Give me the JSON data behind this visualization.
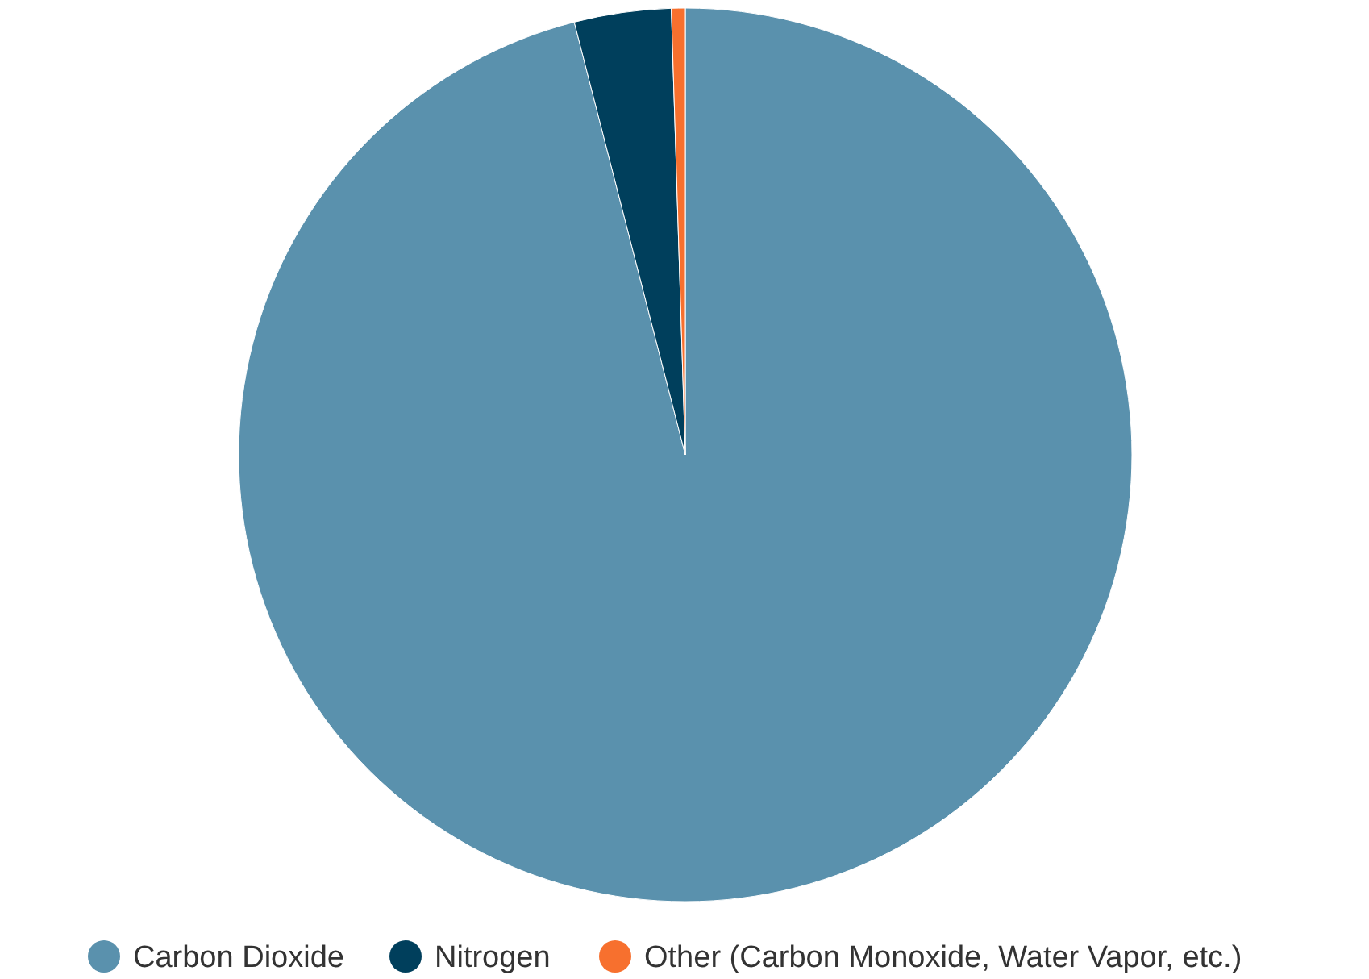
{
  "chart_data": {
    "type": "pie",
    "categories": [
      "Carbon Dioxide",
      "Nitrogen",
      "Other (Carbon Monoxide, Water Vapor, etc.)"
    ],
    "values": [
      96,
      3.5,
      0.5
    ],
    "colors": [
      "#5a91ad",
      "#003f5c",
      "#f7702e"
    ],
    "legend": "bottom"
  }
}
